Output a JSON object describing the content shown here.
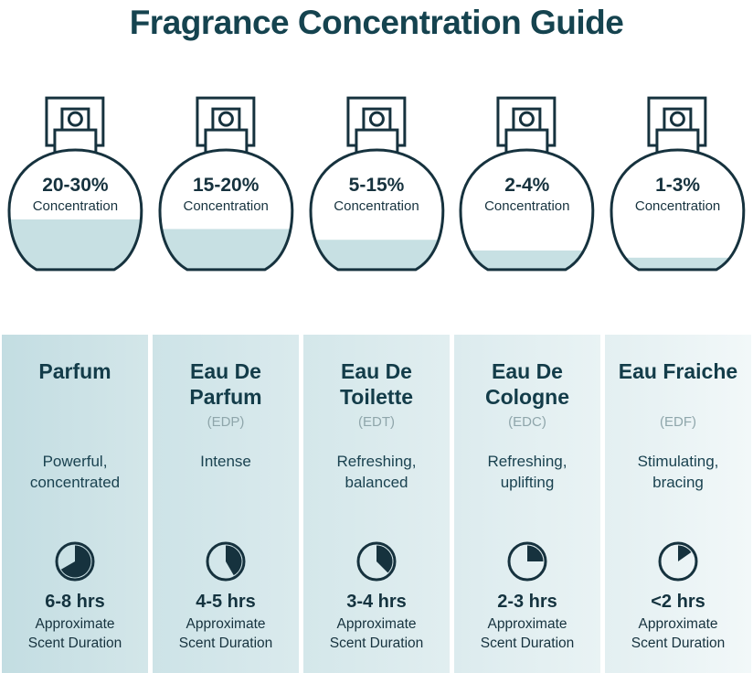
{
  "title": "Fragrance Concentration Guide",
  "colors": {
    "title_ink": "#15434f",
    "ink": "#16323e",
    "liquid": "#c7e0e3",
    "abbr_gray": "#8fa6ab",
    "card_bg_darkest": "#c3dde2",
    "card_bg_lightest": "#f2f8f9"
  },
  "bottles": [
    {
      "range": "20-30%",
      "unit_label": "Concentration",
      "fill_percent": 42
    },
    {
      "range": "15-20%",
      "unit_label": "Concentration",
      "fill_percent": 34
    },
    {
      "range": "5-15%",
      "unit_label": "Concentration",
      "fill_percent": 25
    },
    {
      "range": "2-4%",
      "unit_label": "Concentration",
      "fill_percent": 16
    },
    {
      "range": "1-3%",
      "unit_label": "Concentration",
      "fill_percent": 10
    }
  ],
  "cards": [
    {
      "name": "Parfum",
      "abbr": "",
      "description": "Powerful, concentrated",
      "duration": "6-8 hrs",
      "duration_label": "Approximate Scent Duration",
      "clock_degrees": 240
    },
    {
      "name": "Eau De Parfum",
      "abbr": "(EDP)",
      "description": "Intense",
      "duration": "4-5 hrs",
      "duration_label": "Approximate Scent Duration",
      "clock_degrees": 150
    },
    {
      "name": "Eau De Toilette",
      "abbr": "(EDT)",
      "description": "Refreshing, balanced",
      "duration": "3-4 hrs",
      "duration_label": "Approximate Scent Duration",
      "clock_degrees": 135
    },
    {
      "name": "Eau De Cologne",
      "abbr": "(EDC)",
      "description": "Refreshing, uplifting",
      "duration": "2-3 hrs",
      "duration_label": "Approximate Scent Duration",
      "clock_degrees": 90
    },
    {
      "name": "Eau Fraiche",
      "abbr": "(EDF)",
      "description": "Stimulating, bracing",
      "duration": "<2 hrs",
      "duration_label": "Approximate Scent Duration",
      "clock_degrees": 55
    }
  ]
}
